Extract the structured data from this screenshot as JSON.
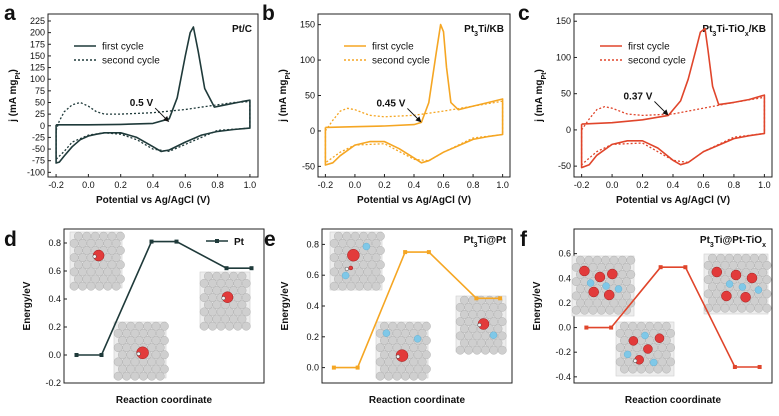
{
  "chart_data": [
    {
      "id": "a",
      "panel_label": "a",
      "type": "line",
      "title": "Pt/C",
      "xlabel": "Potential vs Ag/AgCl (V)",
      "ylabel": "j (mA mg",
      "ylabel_sub": "Pt",
      "ylabel_close": ")",
      "xlim": [
        -0.25,
        1.05
      ],
      "ylim": [
        -110,
        240
      ],
      "xticks": [
        -0.2,
        0.0,
        0.2,
        0.4,
        0.6,
        0.8,
        1.0
      ],
      "xtick_labels": [
        "-0.2",
        "0.0",
        "0.2",
        "0.4",
        "0.6",
        "0.8",
        "1.0"
      ],
      "yticks": [
        -100,
        -75,
        -50,
        -25,
        0,
        25,
        50,
        75,
        100,
        125,
        150,
        175,
        200,
        225
      ],
      "ytick_labels": [
        "-100",
        "-75",
        "-50",
        "-25",
        "0",
        "25",
        "50",
        "75",
        "100",
        "125",
        "150",
        "175",
        "200",
        "225"
      ],
      "color": "#1f3a3a",
      "legend": [
        "first cycle",
        "second cycle"
      ],
      "annotation": {
        "text": "0.5 V",
        "x": 0.5,
        "y": 8
      },
      "series": [
        {
          "name": "first cycle",
          "style": "solid",
          "x": [
            -0.2,
            0.0,
            0.2,
            0.4,
            0.5,
            0.55,
            0.6,
            0.63,
            0.65,
            0.68,
            0.72,
            0.78,
            0.85,
            0.95,
            1.0,
            1.0,
            0.9,
            0.8,
            0.7,
            0.6,
            0.5,
            0.45,
            0.4,
            0.3,
            0.2,
            0.1,
            0.05,
            0.0,
            -0.05,
            -0.1,
            -0.15,
            -0.18,
            -0.2,
            -0.2
          ],
          "y": [
            2,
            2,
            3,
            5,
            15,
            60,
            150,
            200,
            212,
            160,
            80,
            40,
            45,
            52,
            55,
            -5,
            -8,
            -12,
            -20,
            -35,
            -52,
            -55,
            -45,
            -25,
            -15,
            -15,
            -18,
            -22,
            -30,
            -45,
            -65,
            -78,
            -80,
            2
          ]
        },
        {
          "name": "second cycle",
          "style": "dotted",
          "x": [
            -0.2,
            -0.18,
            -0.15,
            -0.1,
            -0.05,
            0.0,
            0.05,
            0.1,
            0.2,
            0.4,
            0.6,
            0.7,
            0.8,
            0.9,
            1.0,
            1.0,
            0.8,
            0.6,
            0.5,
            0.4,
            0.3,
            0.2,
            0.1,
            0.0,
            -0.1,
            -0.15,
            -0.2,
            -0.2
          ],
          "y": [
            -10,
            10,
            30,
            45,
            50,
            42,
            30,
            25,
            25,
            28,
            35,
            40,
            45,
            50,
            52,
            -5,
            -10,
            -40,
            -55,
            -50,
            -30,
            -18,
            -15,
            -20,
            -35,
            -55,
            -72,
            -10
          ]
        }
      ]
    },
    {
      "id": "b",
      "panel_label": "b",
      "type": "line",
      "title": "Pt",
      "title_sub": "3",
      "title_tail": "Ti/KB",
      "xlabel": "Potential vs Ag/AgCl (V)",
      "ylabel": "j (mA mg",
      "ylabel_sub": "Pt",
      "ylabel_close": ")",
      "xlim": [
        -0.25,
        1.05
      ],
      "ylim": [
        -65,
        165
      ],
      "xticks": [
        -0.2,
        0.0,
        0.2,
        0.4,
        0.6,
        0.8,
        1.0
      ],
      "xtick_labels": [
        "-0.2",
        "0.0",
        "0.2",
        "0.4",
        "0.6",
        "0.8",
        "1.0"
      ],
      "yticks": [
        -50,
        0,
        50,
        100,
        150
      ],
      "ytick_labels": [
        "-50",
        "0",
        "50",
        "100",
        "150"
      ],
      "color": "#f5a623",
      "legend": [
        "first cycle",
        "second cycle"
      ],
      "annotation": {
        "text": "0.45 V",
        "x": 0.45,
        "y": 12
      },
      "series": [
        {
          "name": "first cycle",
          "style": "solid",
          "x": [
            -0.2,
            0.0,
            0.2,
            0.4,
            0.45,
            0.5,
            0.55,
            0.58,
            0.6,
            0.62,
            0.65,
            0.7,
            0.8,
            0.9,
            1.0,
            1.0,
            0.9,
            0.8,
            0.6,
            0.5,
            0.45,
            0.4,
            0.3,
            0.2,
            0.1,
            0.0,
            -0.1,
            -0.15,
            -0.2,
            -0.2
          ],
          "y": [
            5,
            6,
            7,
            9,
            12,
            40,
            110,
            150,
            140,
            90,
            40,
            30,
            35,
            40,
            45,
            -5,
            -8,
            -12,
            -30,
            -42,
            -45,
            -38,
            -25,
            -15,
            -15,
            -20,
            -35,
            -45,
            -48,
            5
          ]
        },
        {
          "name": "second cycle",
          "style": "dotted",
          "x": [
            -0.2,
            -0.15,
            -0.1,
            -0.05,
            0.0,
            0.1,
            0.2,
            0.4,
            0.6,
            0.8,
            1.0,
            1.0,
            0.8,
            0.6,
            0.5,
            0.4,
            0.2,
            0.0,
            -0.1,
            -0.2,
            -0.2
          ],
          "y": [
            0,
            15,
            28,
            32,
            30,
            22,
            20,
            22,
            28,
            35,
            42,
            -5,
            -10,
            -30,
            -42,
            -40,
            -18,
            -20,
            -30,
            -45,
            0
          ]
        }
      ]
    },
    {
      "id": "c",
      "panel_label": "c",
      "type": "line",
      "title": "Pt",
      "title_sub": "3",
      "title_tail": "Ti-TiO",
      "title_sub2": "x",
      "title_tail2": "/KB",
      "xlabel": "Potential vs Ag/AgCl (V)",
      "ylabel": "j (mA mg",
      "ylabel_sub": "Pt",
      "ylabel_close": ")",
      "xlim": [
        -0.25,
        1.05
      ],
      "ylim": [
        -65,
        160
      ],
      "xticks": [
        -0.2,
        0.0,
        0.2,
        0.4,
        0.6,
        0.8,
        1.0
      ],
      "xtick_labels": [
        "-0.2",
        "0.0",
        "0.2",
        "0.4",
        "0.6",
        "0.8",
        "1.0"
      ],
      "yticks": [
        -50,
        0,
        50,
        100,
        150
      ],
      "ytick_labels": [
        "-50",
        "0",
        "50",
        "100",
        "150"
      ],
      "color": "#e0452b",
      "legend": [
        "first cycle",
        "second cycle"
      ],
      "annotation": {
        "text": "0.37 V",
        "x": 0.37,
        "y": 20
      },
      "series": [
        {
          "name": "first cycle",
          "style": "solid",
          "x": [
            -0.2,
            0.0,
            0.2,
            0.37,
            0.45,
            0.5,
            0.55,
            0.58,
            0.61,
            0.63,
            0.66,
            0.7,
            0.8,
            0.9,
            1.0,
            1.0,
            0.9,
            0.8,
            0.6,
            0.5,
            0.45,
            0.4,
            0.3,
            0.2,
            0.1,
            0.0,
            -0.1,
            -0.15,
            -0.2,
            -0.2
          ],
          "y": [
            8,
            10,
            14,
            20,
            40,
            70,
            110,
            135,
            140,
            110,
            60,
            35,
            38,
            42,
            48,
            -5,
            -8,
            -12,
            -30,
            -45,
            -48,
            -42,
            -25,
            -15,
            -15,
            -20,
            -35,
            -48,
            -52,
            8
          ]
        },
        {
          "name": "second cycle",
          "style": "dotted",
          "x": [
            -0.2,
            -0.15,
            -0.1,
            -0.05,
            0.0,
            0.1,
            0.2,
            0.4,
            0.6,
            0.8,
            1.0,
            1.0,
            0.8,
            0.6,
            0.5,
            0.4,
            0.2,
            0.0,
            -0.1,
            -0.2,
            -0.2
          ],
          "y": [
            0,
            15,
            28,
            32,
            30,
            22,
            20,
            22,
            30,
            38,
            45,
            -5,
            -10,
            -30,
            -45,
            -42,
            -18,
            -20,
            -30,
            -48,
            0
          ]
        }
      ]
    },
    {
      "id": "d",
      "panel_label": "d",
      "type": "line",
      "title": "",
      "xlabel": "Reaction coordinate",
      "ylabel": "Energy/eV",
      "xlim": [
        0,
        8
      ],
      "ylim": [
        -0.2,
        0.9
      ],
      "yticks": [
        -0.2,
        0.0,
        0.2,
        0.4,
        0.6,
        0.8
      ],
      "ytick_labels": [
        "-0.2",
        "0.0",
        "0.2",
        "0.4",
        "0.6",
        "0.8"
      ],
      "color": "#1f3a3a",
      "legend": [
        "Pt"
      ],
      "series": [
        {
          "name": "Pt",
          "x": [
            0.5,
            1.5,
            3.5,
            4.5,
            6.5,
            7.5
          ],
          "y": [
            0.0,
            0.0,
            0.81,
            0.81,
            0.62,
            0.62
          ]
        }
      ]
    },
    {
      "id": "e",
      "panel_label": "e",
      "type": "line",
      "title": "Pt",
      "title_sub": "3",
      "title_tail": "Ti@Pt",
      "xlabel": "Reaction coordinate",
      "ylabel": "Energy/eV",
      "xlim": [
        0,
        8
      ],
      "ylim": [
        -0.1,
        0.9
      ],
      "yticks": [
        0.0,
        0.2,
        0.4,
        0.6,
        0.8
      ],
      "ytick_labels": [
        "0.0",
        "0.2",
        "0.4",
        "0.6",
        "0.8"
      ],
      "color": "#f5a623",
      "legend": [],
      "series": [
        {
          "name": "Pt3Ti@Pt",
          "x": [
            0.5,
            1.5,
            3.5,
            4.5,
            6.5,
            7.5
          ],
          "y": [
            0.0,
            0.0,
            0.75,
            0.75,
            0.45,
            0.45
          ]
        }
      ]
    },
    {
      "id": "f",
      "panel_label": "f",
      "type": "line",
      "title": "Pt",
      "title_sub": "3",
      "title_tail": "Ti@Pt-TiO",
      "title_sub2": "x",
      "title_tail2": "",
      "xlabel": "Reaction coordinate",
      "ylabel": "Energy/eV",
      "xlim": [
        0,
        8
      ],
      "ylim": [
        -0.45,
        0.8
      ],
      "yticks": [
        -0.4,
        -0.2,
        0.0,
        0.2,
        0.4,
        0.6
      ],
      "ytick_labels": [
        "-0.4",
        "-0.2",
        "0.0",
        "0.2",
        "0.4",
        "0.6"
      ],
      "color": "#e0452b",
      "legend": [],
      "series": [
        {
          "name": "Pt3Ti@Pt-TiOx",
          "x": [
            0.5,
            1.5,
            3.5,
            4.5,
            6.5,
            7.5
          ],
          "y": [
            0.0,
            0.0,
            0.49,
            0.49,
            -0.32,
            -0.32
          ]
        }
      ]
    }
  ],
  "colors": {
    "atom_pt": "#cfcfcf",
    "atom_o": "#e23b3b",
    "atom_ti": "#7fc8e8",
    "atom_h": "#f5f5f5"
  }
}
